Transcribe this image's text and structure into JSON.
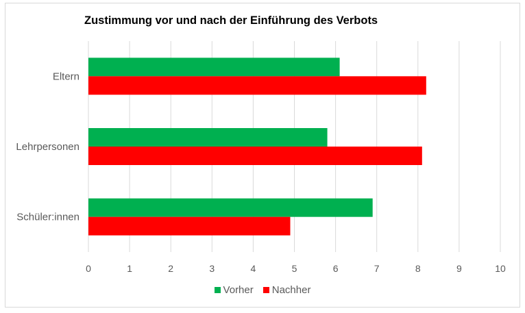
{
  "chart_data": {
    "type": "bar",
    "orientation": "horizontal",
    "title": "Zustimmung vor und nach der Einführung des Verbots",
    "categories": [
      "Eltern",
      "Lehrpersonen",
      "Schüler:innen"
    ],
    "series": [
      {
        "name": "Vorher",
        "color": "#00b050",
        "values": [
          6.1,
          5.8,
          6.9
        ]
      },
      {
        "name": "Nachher",
        "color": "#ff0000",
        "values": [
          8.2,
          8.1,
          4.9
        ]
      }
    ],
    "xlim": [
      0,
      10
    ],
    "x_ticks": [
      "0",
      "1",
      "2",
      "3",
      "4",
      "5",
      "6",
      "7",
      "8",
      "9",
      "10"
    ],
    "grid": true,
    "legend_position": "bottom"
  }
}
